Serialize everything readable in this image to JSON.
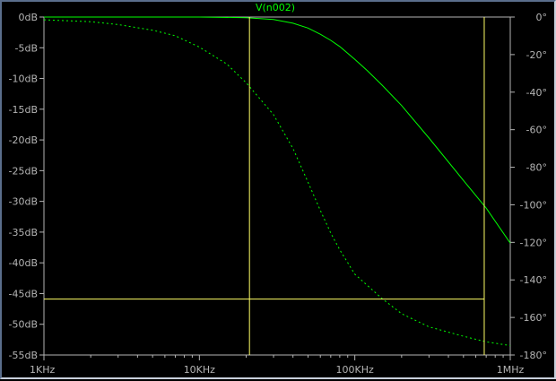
{
  "window": {
    "title": "V(n002)"
  },
  "colors": {
    "background": "#000000",
    "axis": "#b4b4b4",
    "text": "#b4b4b4",
    "trace": "#00ff00",
    "cursor": "#ffff66"
  },
  "chart_data": {
    "type": "line",
    "title": "V(n002)",
    "xscale": "log",
    "xlim": [
      1000,
      1000000
    ],
    "x_ticks": [
      {
        "value": 1000,
        "label": "1KHz"
      },
      {
        "value": 10000,
        "label": "10KHz"
      },
      {
        "value": 100000,
        "label": "100KHz"
      },
      {
        "value": 1000000,
        "label": "1MHz"
      }
    ],
    "left_axis": {
      "ylim": [
        -55,
        0
      ],
      "ticks": [
        {
          "value": 0,
          "label": "0dB"
        },
        {
          "value": -5,
          "label": "-5dB"
        },
        {
          "value": -10,
          "label": "-10dB"
        },
        {
          "value": -15,
          "label": "-15dB"
        },
        {
          "value": -20,
          "label": "-20dB"
        },
        {
          "value": -25,
          "label": "-25dB"
        },
        {
          "value": -30,
          "label": "-30dB"
        },
        {
          "value": -35,
          "label": "-35dB"
        },
        {
          "value": -40,
          "label": "-40dB"
        },
        {
          "value": -45,
          "label": "-45dB"
        },
        {
          "value": -50,
          "label": "-50dB"
        },
        {
          "value": -55,
          "label": "-55dB"
        }
      ]
    },
    "right_axis": {
      "ylim": [
        -180,
        0
      ],
      "ticks": [
        {
          "value": 0,
          "label": "0°"
        },
        {
          "value": -20,
          "label": "-20°"
        },
        {
          "value": -40,
          "label": "-40°"
        },
        {
          "value": -60,
          "label": "-60°"
        },
        {
          "value": -80,
          "label": "-80°"
        },
        {
          "value": -100,
          "label": "-100°"
        },
        {
          "value": -120,
          "label": "-120°"
        },
        {
          "value": -140,
          "label": "-140°"
        },
        {
          "value": -160,
          "label": "-160°"
        },
        {
          "value": -180,
          "label": "-180°"
        }
      ]
    },
    "series": [
      {
        "name": "V(n002)",
        "axis": "left",
        "style": "solid",
        "x": [
          1000,
          5000,
          10000,
          20000,
          30000,
          40000,
          50000,
          60000,
          70000,
          80000,
          100000,
          120000,
          150000,
          200000,
          300000,
          500000,
          700000,
          1000000
        ],
        "y": [
          0,
          0,
          0,
          -0.1,
          -0.4,
          -1,
          -1.8,
          -2.8,
          -3.8,
          -4.8,
          -6.9,
          -8.7,
          -11.1,
          -14.4,
          -19.7,
          -26.6,
          -31.1,
          -36.8
        ]
      },
      {
        "axis": "right",
        "style": "dashed",
        "x": [
          1000,
          2000,
          3000,
          5000,
          7000,
          10000,
          15000,
          20000,
          30000,
          40000,
          50000,
          60000,
          70000,
          80000,
          100000,
          150000,
          200000,
          300000,
          500000,
          700000,
          1000000
        ],
        "y": [
          -1.5,
          -2.5,
          -4,
          -7,
          -10,
          -16,
          -25,
          -35,
          -52,
          -70,
          -88,
          -103,
          -115,
          -124,
          -137,
          -150,
          -158,
          -165,
          -170,
          -173,
          -175
        ]
      }
    ],
    "cursors": {
      "vertical_x": [
        21000,
        680000
      ],
      "horizontal_y": -45.9
    }
  }
}
